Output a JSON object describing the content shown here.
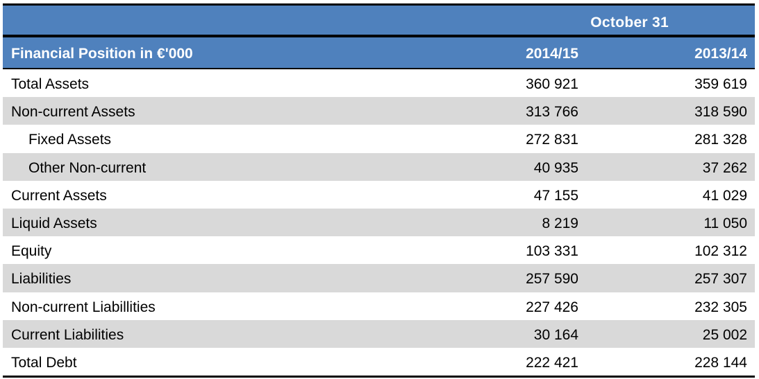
{
  "table": {
    "period_header": "October 31",
    "title": "Financial Position in €'000",
    "columns": [
      "2014/15",
      "2013/14"
    ],
    "rows": [
      {
        "label": "Total Assets",
        "v1": "360 921",
        "v2": "359 619",
        "indent": false,
        "shaded": false
      },
      {
        "label": "Non-current Assets",
        "v1": "313 766",
        "v2": "318 590",
        "indent": false,
        "shaded": true
      },
      {
        "label": "Fixed Assets",
        "v1": "272 831",
        "v2": "281 328",
        "indent": true,
        "shaded": false
      },
      {
        "label": "Other Non-current",
        "v1": "40 935",
        "v2": "37 262",
        "indent": true,
        "shaded": true
      },
      {
        "label": "Current Assets",
        "v1": "47 155",
        "v2": "41 029",
        "indent": false,
        "shaded": false
      },
      {
        "label": "Liquid Assets",
        "v1": "8 219",
        "v2": "11 050",
        "indent": false,
        "shaded": true
      },
      {
        "label": "Equity",
        "v1": "103 331",
        "v2": "102 312",
        "indent": false,
        "shaded": false
      },
      {
        "label": "Liabilities",
        "v1": "257 590",
        "v2": "257 307",
        "indent": false,
        "shaded": true
      },
      {
        "label": "Non-current Liabillities",
        "v1": "227 426",
        "v2": "232 305",
        "indent": false,
        "shaded": false
      },
      {
        "label": "Current Liabilities",
        "v1": "30 164",
        "v2": "25 002",
        "indent": false,
        "shaded": true
      },
      {
        "label": "Total Debt",
        "v1": "222 421",
        "v2": "228 144",
        "indent": false,
        "shaded": false
      }
    ]
  },
  "colors": {
    "header_bg": "#4f81bd",
    "header_text": "#ffffff",
    "row_shade": "#d9d9d9",
    "rule": "#000000"
  }
}
